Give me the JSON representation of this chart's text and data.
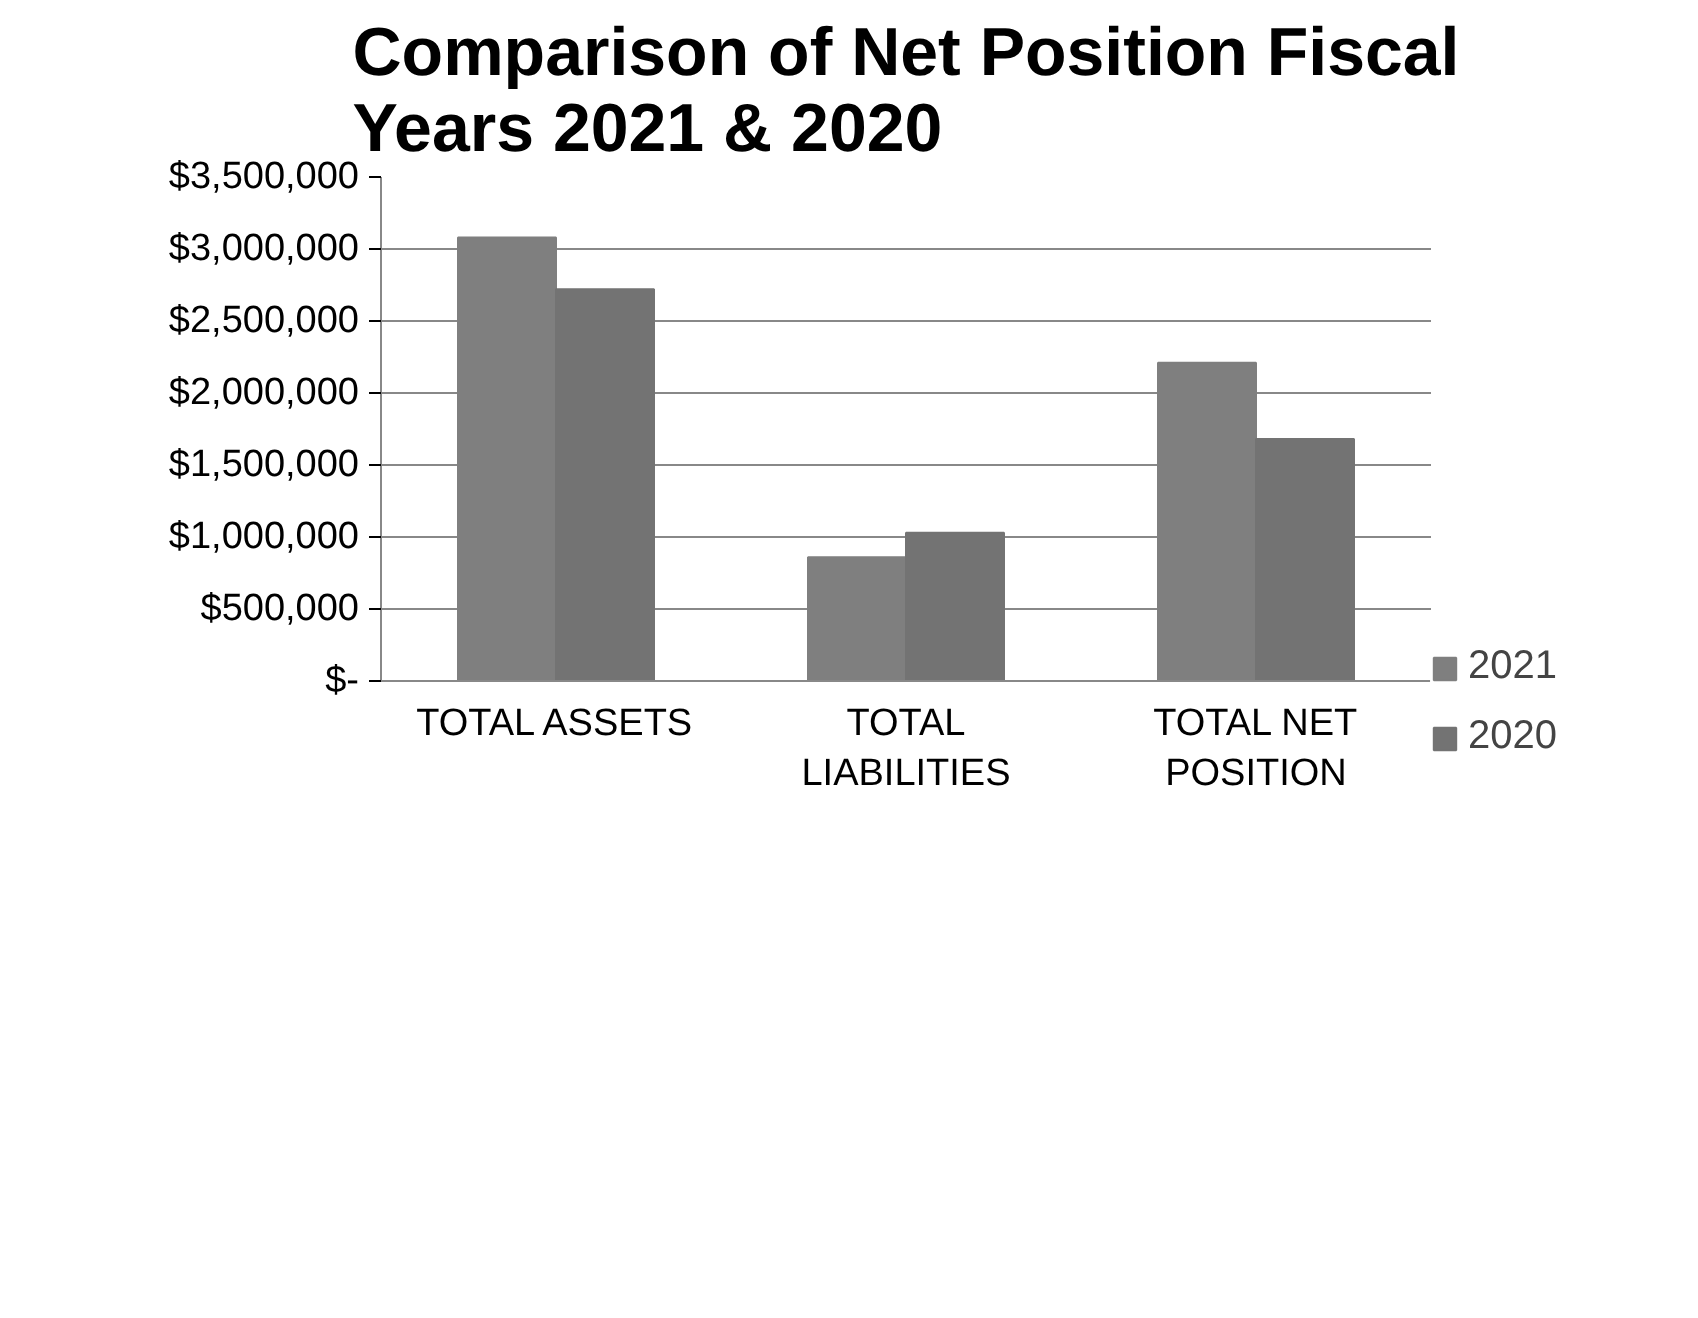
{
  "chart_data": {
    "type": "bar",
    "title": "Comparison of Net Position Fiscal Years 2021 & 2020",
    "categories": [
      "TOTAL ASSETS",
      "TOTAL LIABILITIES",
      "TOTAL NET POSITION"
    ],
    "series": [
      {
        "name": "2021",
        "color": "#7f7f7f",
        "values": [
          3080000,
          860000,
          2210000
        ]
      },
      {
        "name": "2020",
        "color": "#737373",
        "values": [
          2720000,
          1030000,
          1680000
        ]
      }
    ],
    "ylim": [
      0,
      3500000
    ],
    "yticks": [
      {
        "value": 0,
        "label": "$-"
      },
      {
        "value": 500000,
        "label": "$500,000"
      },
      {
        "value": 1000000,
        "label": "$1,000,000"
      },
      {
        "value": 1500000,
        "label": "$1,500,000"
      },
      {
        "value": 2000000,
        "label": "$2,000,000"
      },
      {
        "value": 2500000,
        "label": "$2,500,000"
      },
      {
        "value": 3000000,
        "label": "$3,000,000"
      },
      {
        "value": 3500000,
        "label": "$3,500,000"
      }
    ],
    "grid": "y",
    "legend": "right"
  }
}
